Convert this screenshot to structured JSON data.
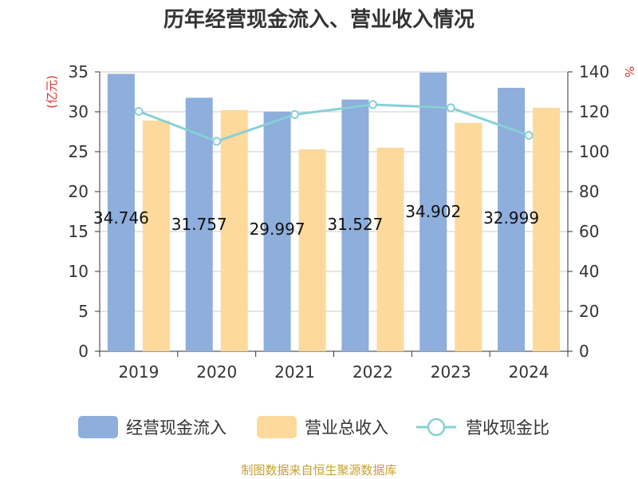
{
  "chart_data": {
    "type": "bar+line",
    "title": "历年经营现金流入、营业收入情况",
    "categories": [
      "2019",
      "2020",
      "2021",
      "2022",
      "2023",
      "2024"
    ],
    "y_left": {
      "unit": "(亿元)",
      "ylim": [
        0,
        35
      ],
      "ticks": [
        0,
        5,
        10,
        15,
        20,
        25,
        30,
        35
      ]
    },
    "y_right": {
      "unit": "%",
      "ylim": [
        0,
        140
      ],
      "ticks": [
        0,
        20,
        40,
        60,
        80,
        100,
        120,
        140
      ]
    },
    "series": [
      {
        "name": "经营现金流入",
        "type": "bar",
        "axis": "left",
        "color": "#8eaedb",
        "values": [
          34.746,
          31.757,
          29.997,
          31.527,
          34.902,
          32.999
        ],
        "labels": [
          "34.746",
          "31.757",
          "29.997",
          "31.527",
          "34.902",
          "32.999"
        ]
      },
      {
        "name": "营业总收入",
        "type": "bar",
        "axis": "left",
        "color": "#fdd99b",
        "values": [
          28.9,
          30.2,
          25.3,
          25.5,
          28.6,
          30.5
        ]
      },
      {
        "name": "营收现金比",
        "type": "line",
        "axis": "right",
        "color": "#86d0d6",
        "values": [
          120.2,
          105.2,
          118.6,
          123.6,
          122.0,
          108.2
        ]
      }
    ],
    "grid": true,
    "legend_position": "bottom"
  },
  "source": "制图数据来自恒生聚源数据库"
}
